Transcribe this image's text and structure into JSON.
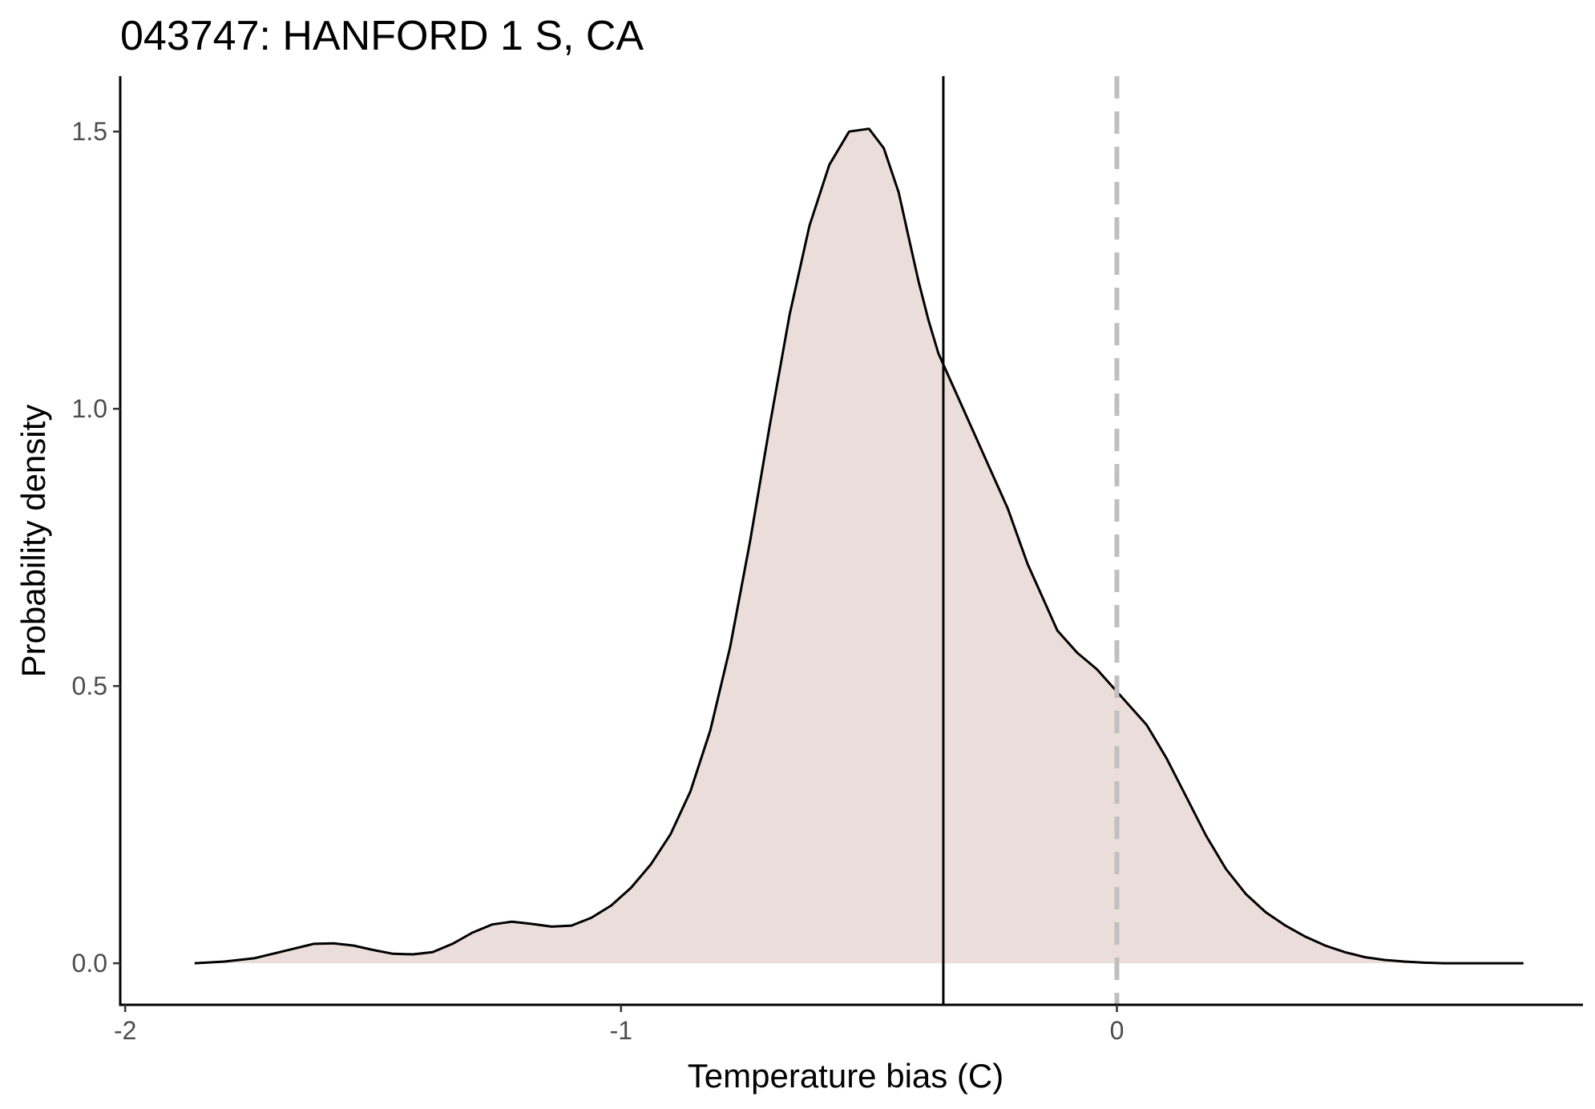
{
  "chart_data": {
    "type": "area",
    "title": "043747: HANFORD 1 S, CA",
    "xlabel": "Temperature bias (C)",
    "ylabel": "Probability density",
    "xlim": [
      -2.01,
      0.94
    ],
    "ylim": [
      -0.075,
      1.6
    ],
    "x_ticks": [
      -2,
      -1,
      0
    ],
    "x_tick_labels": [
      "-2",
      "-1",
      "0"
    ],
    "y_ticks": [
      0.0,
      0.5,
      1.0,
      1.5
    ],
    "y_tick_labels": [
      "0.0",
      "0.5",
      "1.0",
      "1.5"
    ],
    "grid": false,
    "legend": "none",
    "series": [
      {
        "x": [
          -1.86,
          -1.8,
          -1.74,
          -1.68,
          -1.62,
          -1.58,
          -1.54,
          -1.5,
          -1.46,
          -1.42,
          -1.38,
          -1.34,
          -1.3,
          -1.26,
          -1.22,
          -1.18,
          -1.14,
          -1.1,
          -1.06,
          -1.02,
          -0.98,
          -0.94,
          -0.9,
          -0.86,
          -0.82,
          -0.78,
          -0.74,
          -0.7,
          -0.66,
          -0.62,
          -0.58,
          -0.54,
          -0.5,
          -0.47,
          -0.44,
          -0.42,
          -0.4,
          -0.38,
          -0.36,
          -0.34,
          -0.32,
          -0.3,
          -0.28,
          -0.26,
          -0.24,
          -0.22,
          -0.2,
          -0.18,
          -0.16,
          -0.14,
          -0.12,
          -0.1,
          -0.08,
          -0.06,
          -0.04,
          -0.02,
          0.0,
          0.02,
          0.04,
          0.06,
          0.08,
          0.1,
          0.14,
          0.18,
          0.22,
          0.26,
          0.3,
          0.34,
          0.38,
          0.42,
          0.46,
          0.5,
          0.54,
          0.58,
          0.62,
          0.66,
          0.7,
          0.74,
          0.78,
          0.82
        ],
        "y": [
          0.0,
          0.003,
          0.009,
          0.022,
          0.035,
          0.036,
          0.032,
          0.024,
          0.017,
          0.016,
          0.02,
          0.035,
          0.055,
          0.07,
          0.075,
          0.071,
          0.066,
          0.068,
          0.082,
          0.104,
          0.136,
          0.178,
          0.233,
          0.31,
          0.42,
          0.57,
          0.76,
          0.97,
          1.17,
          1.33,
          1.44,
          1.5,
          1.505,
          1.47,
          1.39,
          1.31,
          1.23,
          1.16,
          1.1,
          1.06,
          1.02,
          0.98,
          0.94,
          0.9,
          0.86,
          0.82,
          0.77,
          0.72,
          0.68,
          0.64,
          0.6,
          0.58,
          0.56,
          0.545,
          0.53,
          0.51,
          0.49,
          0.47,
          0.45,
          0.43,
          0.4,
          0.37,
          0.3,
          0.23,
          0.17,
          0.125,
          0.092,
          0.068,
          0.048,
          0.032,
          0.02,
          0.011,
          0.006,
          0.003,
          0.001,
          0.0,
          0.0,
          0.0,
          0.0,
          0.0
        ],
        "fill": "#ebdeda",
        "line": "#000000"
      }
    ],
    "vlines": [
      {
        "x": -0.35,
        "style": "solid",
        "color": "#000000"
      },
      {
        "x": 0.0,
        "style": "dashed",
        "color": "#c0c0c0"
      }
    ]
  }
}
